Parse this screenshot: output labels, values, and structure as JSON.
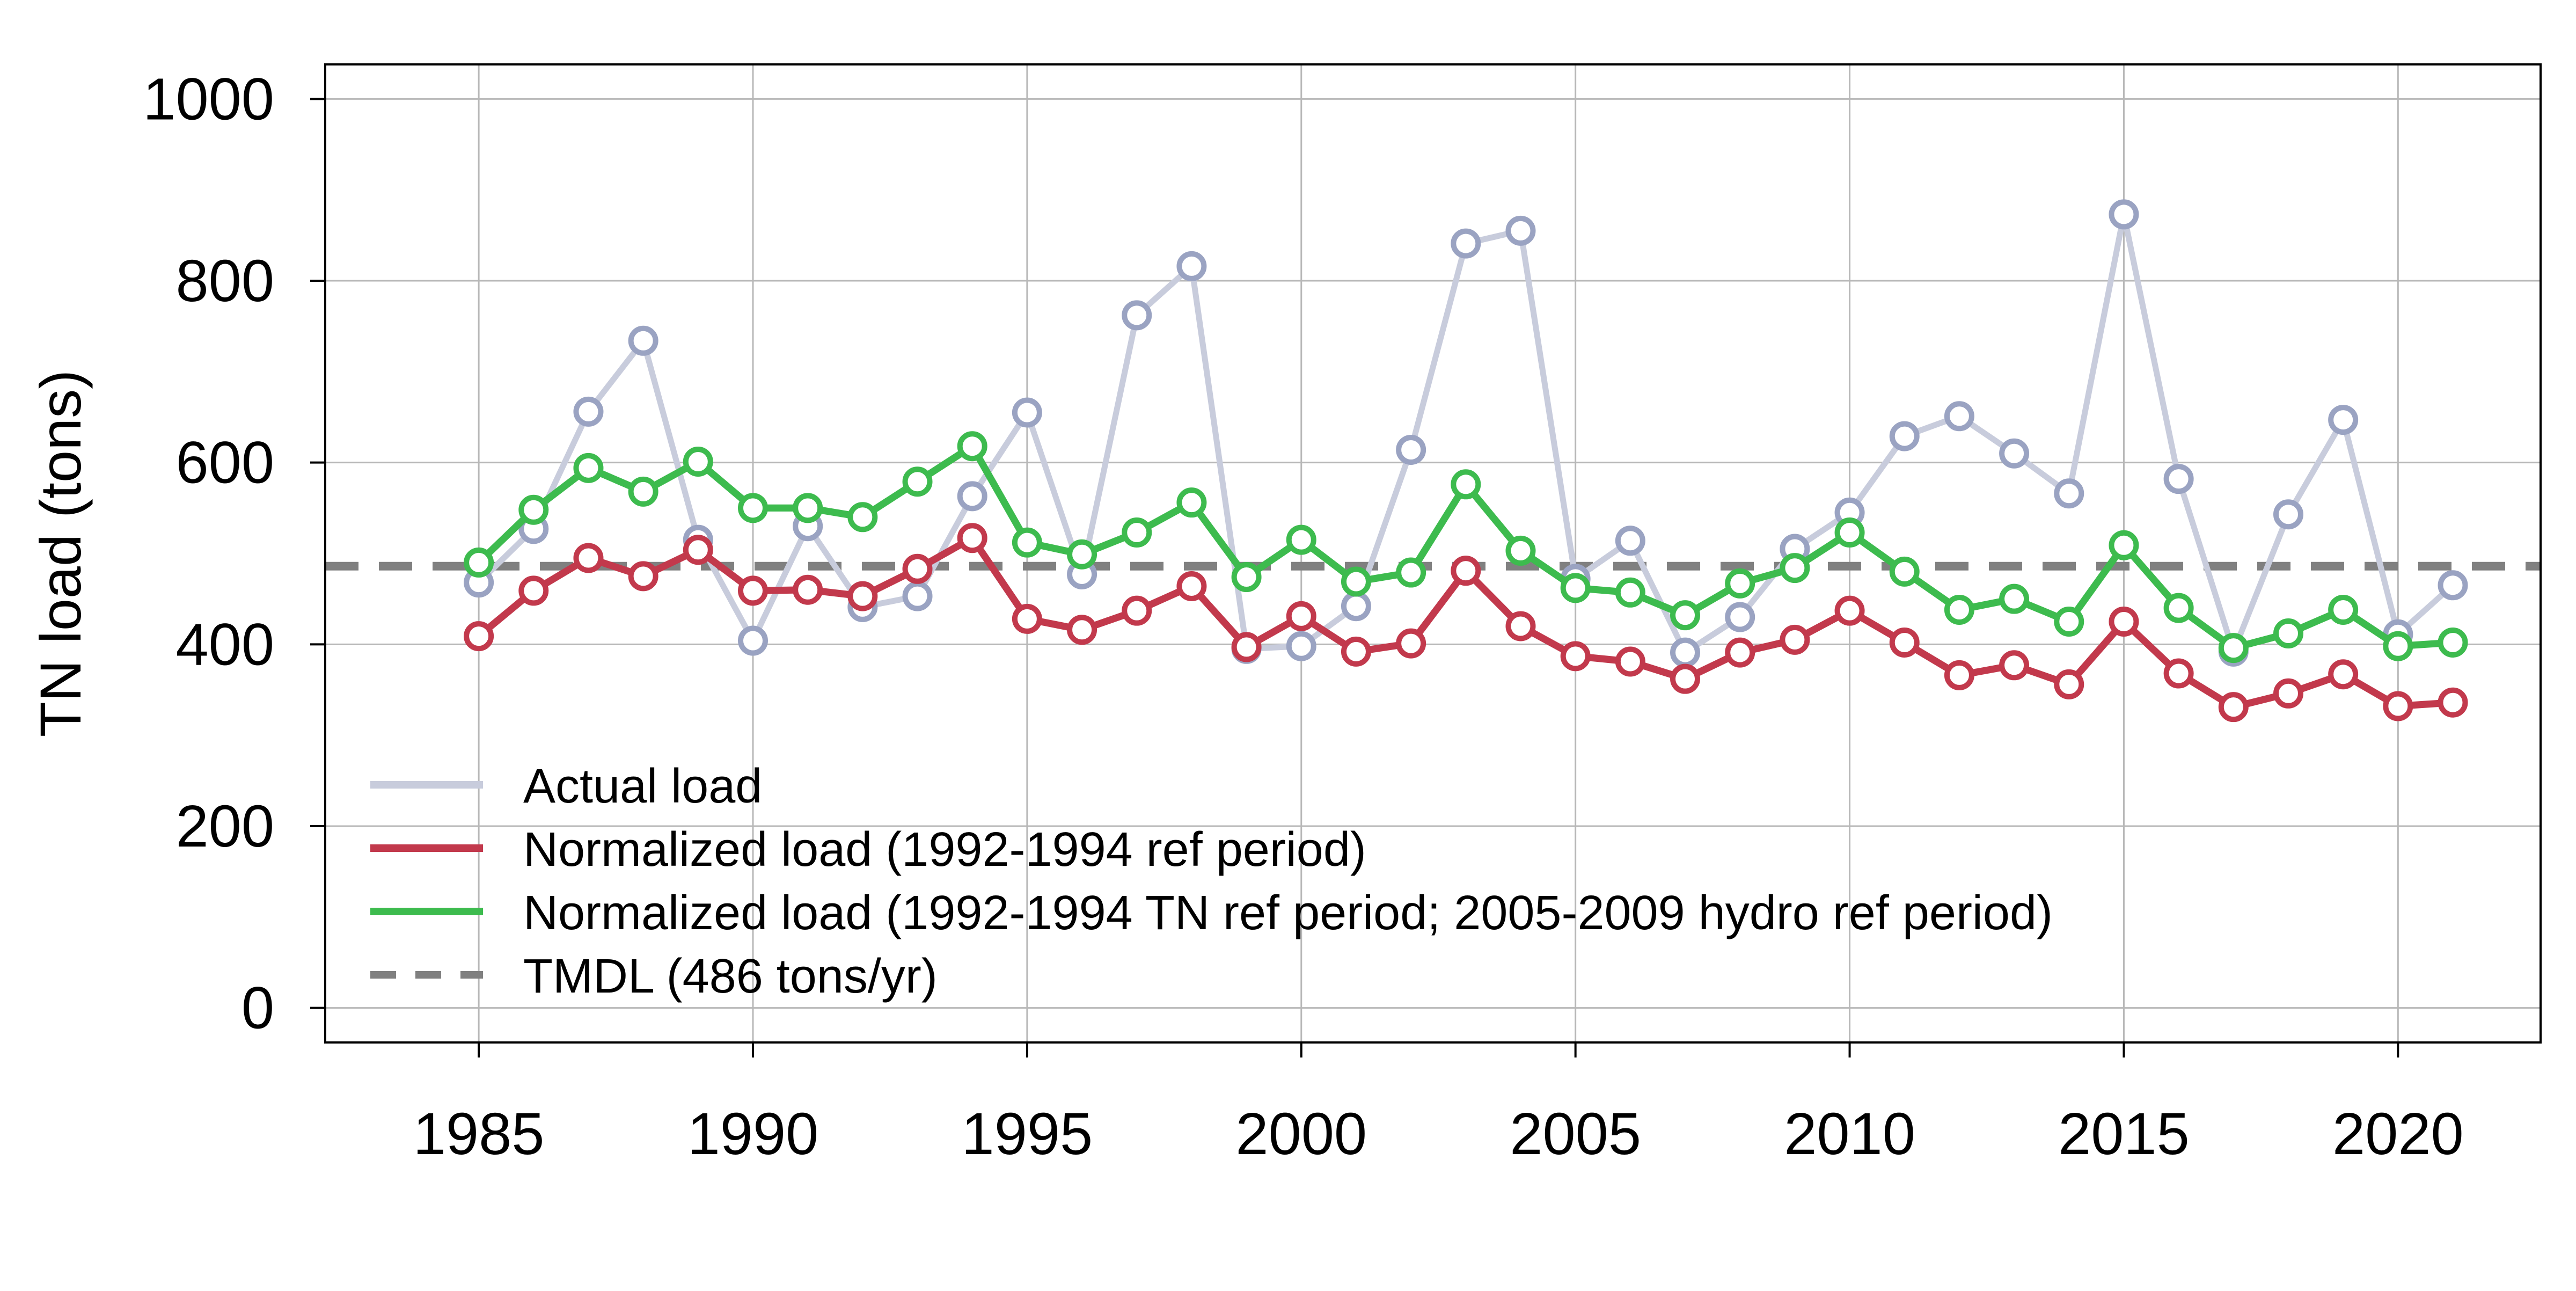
{
  "chart_data": {
    "type": "line",
    "title": "",
    "xlabel": "",
    "ylabel": "TN load (tons)",
    "xlim": [
      1982.2,
      2022.6
    ],
    "ylim": [
      -38,
      1038
    ],
    "x_ticks": [
      1985,
      1990,
      1995,
      2000,
      2005,
      2010,
      2015,
      2020
    ],
    "y_ticks": [
      0,
      200,
      400,
      600,
      800,
      1000
    ],
    "grid": true,
    "legend_position": "bottom-left",
    "x": [
      1985,
      1986,
      1987,
      1988,
      1989,
      1990,
      1991,
      1992,
      1993,
      1994,
      1995,
      1996,
      1997,
      1998,
      1999,
      2000,
      2001,
      2002,
      2003,
      2004,
      2005,
      2006,
      2007,
      2008,
      2009,
      2010,
      2011,
      2012,
      2013,
      2014,
      2015,
      2016,
      2017,
      2018,
      2019,
      2020,
      2021
    ],
    "series": [
      {
        "name": "Actual load",
        "color": "#c8ccdc",
        "marker_color": "#9aa3c2",
        "width": 5,
        "values": [
          468,
          527,
          656,
          734,
          515,
          404,
          530,
          441,
          453,
          563,
          655,
          477,
          762,
          816,
          395,
          398,
          442,
          614,
          841,
          855,
          472,
          514,
          391,
          430,
          505,
          545,
          629,
          651,
          610,
          566,
          873,
          582,
          392,
          543,
          647,
          411,
          465
        ]
      },
      {
        "name": "Normalized load (1992-1994 ref period)",
        "color": "#c2394c",
        "marker_color": "#c2394c",
        "width": 6,
        "values": [
          409,
          459,
          495,
          475,
          504,
          459,
          460,
          453,
          483,
          517,
          428,
          416,
          437,
          464,
          397,
          431,
          392,
          401,
          481,
          420,
          387,
          381,
          362,
          391,
          405,
          437,
          402,
          366,
          377,
          356,
          425,
          368,
          331,
          346,
          367,
          332,
          336
        ]
      },
      {
        "name": "Normalized load (1992-1994 TN ref period; 2005-2009 hydro ref period)",
        "color": "#3dbb4e",
        "marker_color": "#3dbb4e",
        "width": 6,
        "values": [
          490,
          548,
          594,
          568,
          601,
          550,
          550,
          540,
          579,
          618,
          512,
          499,
          523,
          556,
          474,
          515,
          469,
          479,
          576,
          503,
          462,
          457,
          432,
          467,
          484,
          523,
          480,
          438,
          450,
          425,
          509,
          440,
          396,
          412,
          438,
          398,
          402
        ]
      }
    ],
    "reference_lines": [
      {
        "name": "TMDL (486 tons/yr)",
        "value": 486,
        "color": "#808080",
        "style": "dashed"
      }
    ]
  }
}
